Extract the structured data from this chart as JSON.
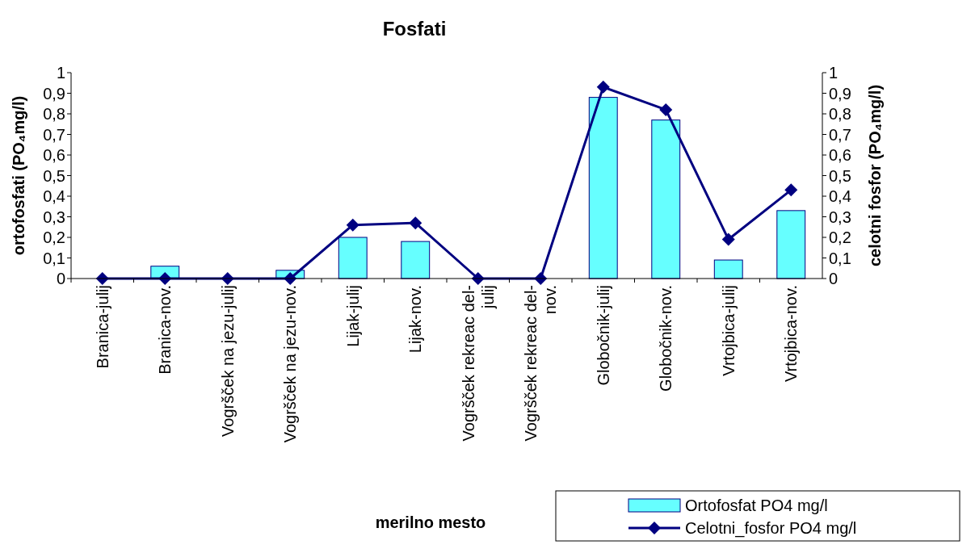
{
  "chart_data": {
    "type": "bar",
    "title": "Fosfati",
    "xlabel": "merilno mesto",
    "ylabel": "ortofosfati (PO₄mg/l)",
    "y2label": "celotni fosfor (PO₄mg/l)",
    "categories": [
      "Branica-julij",
      "Branica-nov.",
      "Vogršček na jezu-julij",
      "Vogršček na jezu-nov.",
      "Lijak-julij",
      "Lijak-nov.",
      "Vogršček rekreac del-julij",
      "Vogršček rekreac del-nov.",
      "Globočnik-julij",
      "Globočnik-nov.",
      "Vrtojbica-julij",
      "Vrtojbica-nov."
    ],
    "series": [
      {
        "name": "Ortofosfat PO4 mg/l",
        "color": "#66ffff",
        "values": [
          0,
          0.06,
          0,
          0.04,
          0.2,
          0.18,
          0,
          0,
          0.88,
          0.77,
          0.09,
          0.33
        ]
      },
      {
        "name": "Celotni_fosfor PO4 mg/l",
        "type": "line",
        "axis": "y2",
        "color": "#000080",
        "marker": "diamond",
        "values": [
          0,
          0,
          0,
          0,
          0.26,
          0.27,
          0,
          0,
          0.93,
          0.82,
          0.19,
          0.43
        ]
      }
    ],
    "ylim": [
      0,
      1
    ],
    "yticks": [
      0,
      {
        "value": 0.1,
        "label": "0,1"
      },
      {
        "value": 0.2,
        "label": "0,2"
      },
      {
        "value": 0.3,
        "label": "0,3"
      },
      {
        "value": 0.4,
        "label": "0,4"
      },
      {
        "value": 0.5,
        "label": "0,5"
      },
      {
        "value": 0.6,
        "label": "0,6"
      },
      {
        "value": 0.7,
        "label": "0,7"
      },
      {
        "value": 0.8,
        "label": "0,8"
      },
      {
        "value": 0.9,
        "label": "0,9"
      },
      1
    ],
    "y2lim": [
      0,
      1
    ],
    "y2ticks": [
      0,
      {
        "value": 0.1,
        "label": "0,1"
      },
      {
        "value": 0.2,
        "label": "0,2"
      },
      {
        "value": 0.3,
        "label": "0,3"
      },
      {
        "value": 0.4,
        "label": "0,4"
      },
      {
        "value": 0.5,
        "label": "0,5"
      },
      {
        "value": 0.6,
        "label": "0,6"
      },
      {
        "value": 0.7,
        "label": "0,7"
      },
      {
        "value": 0.8,
        "label": "0,8"
      },
      {
        "value": 0.9,
        "label": "0,9"
      },
      1
    ],
    "legend": "bottom right",
    "grid": false
  }
}
